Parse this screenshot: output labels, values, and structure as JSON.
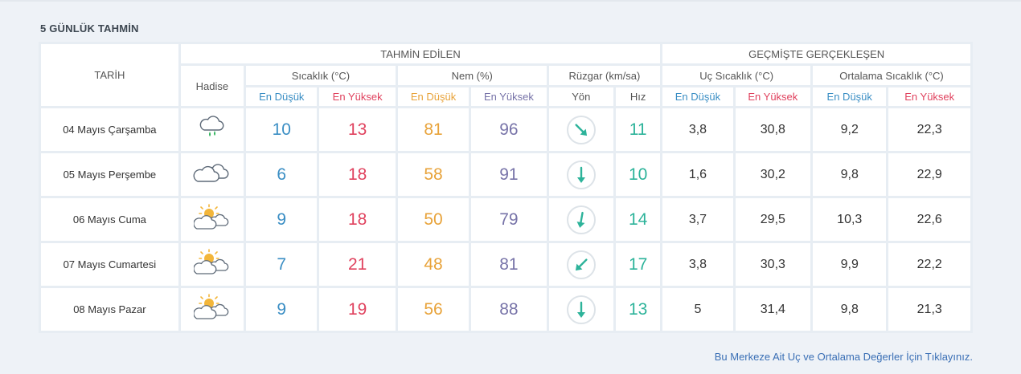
{
  "section_title": "5 GÜNLÜK TAHMİN",
  "headers": {
    "date": "TARİH",
    "forecast_group": "TAHMİN EDİLEN",
    "past_group": "GEÇMİŞTE GERÇEKLEŞEN",
    "phenomenon": "Hadise",
    "temperature": "Sıcaklık (°C)",
    "humidity": "Nem (%)",
    "wind": "Rüzgar (km/sa)",
    "extreme_temp": "Uç Sıcaklık (°C)",
    "avg_temp": "Ortalama Sıcaklık (°C)",
    "min": "En Düşük",
    "max": "En Yüksek",
    "direction": "Yön",
    "speed": "Hız"
  },
  "rows": [
    {
      "date": "04 Mayıs Çarşamba",
      "icon": "cloud-rain-icon",
      "temp_min": "10",
      "temp_max": "13",
      "hum_min": "81",
      "hum_max": "96",
      "wind_dir_deg": 135,
      "wind_speed": "11",
      "ext_min": "3,8",
      "ext_max": "30,8",
      "avg_min": "9,2",
      "avg_max": "22,3"
    },
    {
      "date": "05 Mayıs Perşembe",
      "icon": "cloud-icon",
      "temp_min": "6",
      "temp_max": "18",
      "hum_min": "58",
      "hum_max": "91",
      "wind_dir_deg": 180,
      "wind_speed": "10",
      "ext_min": "1,6",
      "ext_max": "30,2",
      "avg_min": "9,8",
      "avg_max": "22,9"
    },
    {
      "date": "06 Mayıs Cuma",
      "icon": "sun-cloud-icon",
      "temp_min": "9",
      "temp_max": "18",
      "hum_min": "50",
      "hum_max": "79",
      "wind_dir_deg": 190,
      "wind_speed": "14",
      "ext_min": "3,7",
      "ext_max": "29,5",
      "avg_min": "10,3",
      "avg_max": "22,6"
    },
    {
      "date": "07 Mayıs Cumartesi",
      "icon": "sun-cloud-icon",
      "temp_min": "7",
      "temp_max": "21",
      "hum_min": "48",
      "hum_max": "81",
      "wind_dir_deg": 225,
      "wind_speed": "17",
      "ext_min": "3,8",
      "ext_max": "30,3",
      "avg_min": "9,9",
      "avg_max": "22,2"
    },
    {
      "date": "08 Mayıs Pazar",
      "icon": "sun-cloud-icon",
      "temp_min": "9",
      "temp_max": "19",
      "hum_min": "56",
      "hum_max": "88",
      "wind_dir_deg": 180,
      "wind_speed": "13",
      "ext_min": "5",
      "ext_max": "31,4",
      "avg_min": "9,8",
      "avg_max": "21,3"
    }
  ],
  "footer_link": "Bu Merkeze Ait Uç ve Ortalama Değerler İçin Tıklayınız.",
  "colors": {
    "min": "#3a8ec4",
    "max": "#e0425e",
    "hum_min": "#e8a33a",
    "hum_max": "#7773a8",
    "speed": "#2db39a"
  }
}
